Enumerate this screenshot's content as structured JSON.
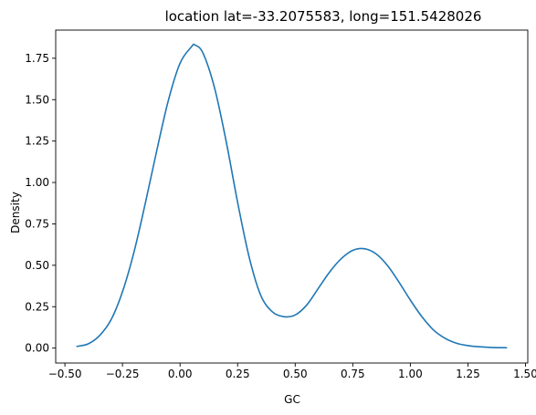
{
  "chart_data": {
    "type": "line",
    "title": "location lat=-33.2075583, long=151.5428026",
    "xlabel": "GC",
    "ylabel": "Density",
    "xlim": [
      -0.54,
      1.51
    ],
    "ylim": [
      -0.09,
      1.92
    ],
    "xticks": [
      -0.5,
      -0.25,
      0.0,
      0.25,
      0.5,
      0.75,
      1.0,
      1.25,
      1.5
    ],
    "xtick_labels": [
      "−0.50",
      "−0.25",
      "0.00",
      "0.25",
      "0.50",
      "0.75",
      "1.00",
      "1.25",
      "1.50"
    ],
    "yticks": [
      0.0,
      0.25,
      0.5,
      0.75,
      1.0,
      1.25,
      1.5,
      1.75
    ],
    "ytick_labels": [
      "0.00",
      "0.25",
      "0.50",
      "0.75",
      "1.00",
      "1.25",
      "1.50",
      "1.75"
    ],
    "grid": false,
    "legend": "none",
    "line_color": "#1f77b4",
    "series": [
      {
        "x": [
          -0.45,
          -0.4,
          -0.35,
          -0.3,
          -0.25,
          -0.2,
          -0.15,
          -0.1,
          -0.05,
          0.0,
          0.05,
          0.065,
          0.1,
          0.15,
          0.2,
          0.25,
          0.3,
          0.35,
          0.4,
          0.45,
          0.5,
          0.55,
          0.6,
          0.65,
          0.7,
          0.75,
          0.8,
          0.85,
          0.9,
          0.95,
          1.0,
          1.05,
          1.1,
          1.15,
          1.2,
          1.25,
          1.3,
          1.35,
          1.42
        ],
        "y": [
          0.01,
          0.025,
          0.075,
          0.17,
          0.34,
          0.58,
          0.88,
          1.2,
          1.5,
          1.72,
          1.82,
          1.83,
          1.78,
          1.57,
          1.25,
          0.88,
          0.55,
          0.32,
          0.22,
          0.19,
          0.2,
          0.26,
          0.36,
          0.46,
          0.54,
          0.59,
          0.6,
          0.57,
          0.5,
          0.4,
          0.29,
          0.19,
          0.11,
          0.06,
          0.03,
          0.015,
          0.008,
          0.004,
          0.002
        ]
      }
    ]
  }
}
